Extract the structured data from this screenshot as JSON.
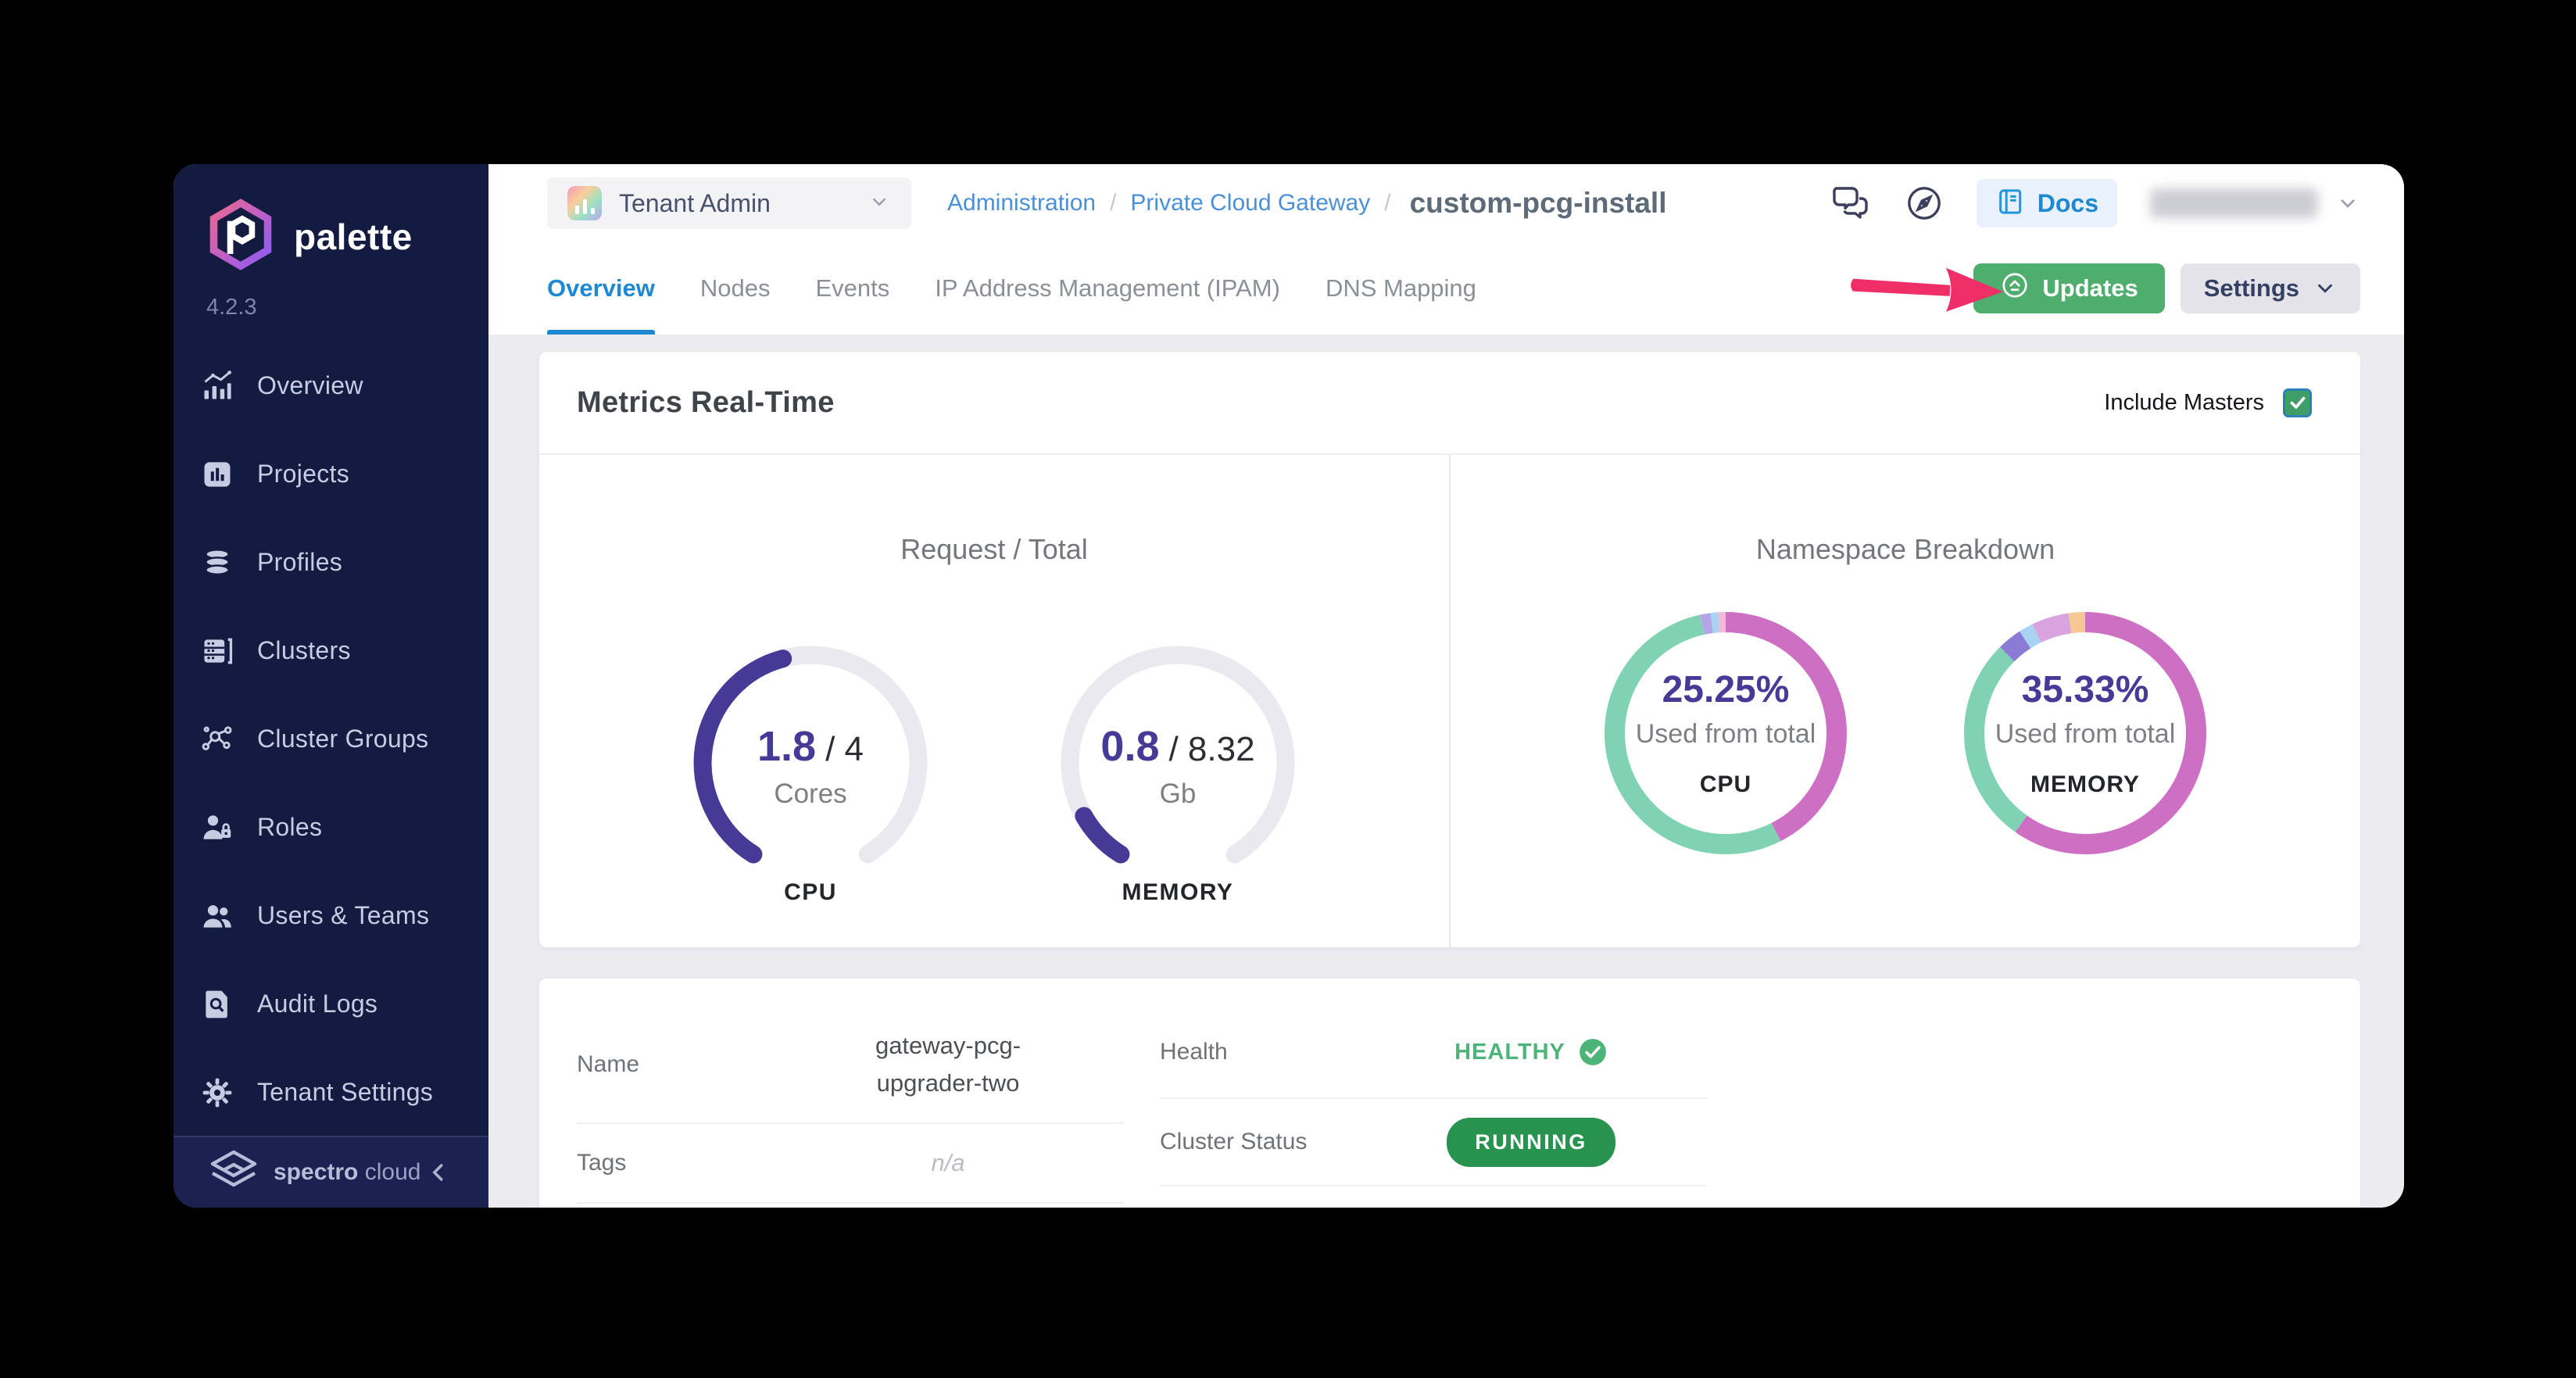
{
  "colors": {
    "sidebar_navy": "#141b41",
    "accent_blue": "#1e88d2",
    "breadcrumb_link": "#4a90d9",
    "updates_green": "#4fae6d",
    "arrow_pink": "#ef2e68",
    "gauge_purple": "#453a96",
    "gauge_track": "#e9e9ef",
    "checkbox_green": "#3f9e67",
    "healthy_green": "#4cb479",
    "running_green": "#27934f"
  },
  "brand": {
    "name": "palette",
    "version": "4.2.3",
    "footer_bold": "spectro",
    "footer_light": "cloud"
  },
  "sidebar": {
    "items": [
      {
        "label": "Overview"
      },
      {
        "label": "Projects"
      },
      {
        "label": "Profiles"
      },
      {
        "label": "Clusters"
      },
      {
        "label": "Cluster Groups"
      },
      {
        "label": "Roles"
      },
      {
        "label": "Users & Teams"
      },
      {
        "label": "Audit Logs"
      },
      {
        "label": "Tenant Settings"
      }
    ]
  },
  "topbar": {
    "tenant_label": "Tenant Admin",
    "breadcrumb": [
      "Administration",
      "Private Cloud Gateway"
    ],
    "separator": "/",
    "page_title": "custom-pcg-install",
    "docs_label": "Docs"
  },
  "tabs": {
    "items": [
      {
        "label": "Overview",
        "active": true
      },
      {
        "label": "Nodes",
        "active": false
      },
      {
        "label": "Events",
        "active": false
      },
      {
        "label": "IP Address Management (IPAM)",
        "active": false
      },
      {
        "label": "DNS Mapping",
        "active": false
      }
    ]
  },
  "actions": {
    "updates_label": "Updates",
    "settings_label": "Settings"
  },
  "metrics": {
    "title": "Metrics Real-Time",
    "include_masters_label": "Include Masters",
    "include_masters_checked": true
  },
  "chart_data": [
    {
      "type": "gauge",
      "group_title": "Request / Total",
      "label": "CPU",
      "value": 1.8,
      "total": 4,
      "value_display": "1.8",
      "total_display": "/ 4",
      "unit": "Cores",
      "fill_color": "#453a96",
      "track_color": "#e9e9ef"
    },
    {
      "type": "gauge",
      "group_title": "Request / Total",
      "label": "MEMORY",
      "value": 0.8,
      "total": 8.32,
      "value_display": "0.8",
      "total_display": "/ 8.32",
      "unit": "Gb",
      "fill_color": "#453a96",
      "track_color": "#e9e9ef"
    },
    {
      "type": "donut",
      "group_title": "Namespace Breakdown",
      "label": "CPU",
      "percent": 25.25,
      "percent_display": "25.25%",
      "subtitle": "Used from total",
      "segments": [
        {
          "color": "#cd6fc3",
          "value": 42.5
        },
        {
          "color": "#7fd3b2",
          "value": 54.1
        },
        {
          "color": "#b3a5e8",
          "value": 1.4
        },
        {
          "color": "#a9d3f2",
          "value": 1.0
        },
        {
          "color": "#f3b9d8",
          "value": 1.0
        }
      ]
    },
    {
      "type": "donut",
      "group_title": "Namespace Breakdown",
      "label": "MEMORY",
      "percent": 35.33,
      "percent_display": "35.33%",
      "subtitle": "Used from total",
      "segments": [
        {
          "color": "#cd6fc3",
          "value": 59.8
        },
        {
          "color": "#7fd3b2",
          "value": 27.8
        },
        {
          "color": "#8b7ad6",
          "value": 3.3
        },
        {
          "color": "#a9d3f2",
          "value": 1.9
        },
        {
          "color": "#d9a3e0",
          "value": 5.0
        },
        {
          "color": "#f4c793",
          "value": 2.2
        }
      ]
    }
  ],
  "details": {
    "left": [
      {
        "label": "Name",
        "value": "gateway-pcg-upgrader-two"
      },
      {
        "label": "Tags",
        "value": "n/a"
      }
    ],
    "right": [
      {
        "label": "Health",
        "value": "HEALTHY"
      },
      {
        "label": "Cluster Status",
        "value": "RUNNING"
      }
    ]
  }
}
